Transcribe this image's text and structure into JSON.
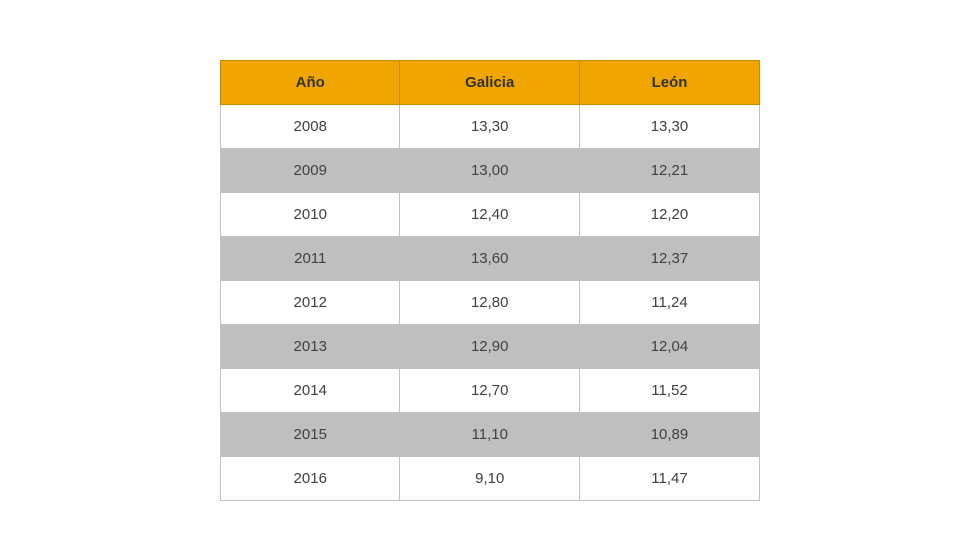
{
  "table": {
    "columns": [
      "Año",
      "Galicia",
      "León"
    ],
    "rows": [
      [
        "2008",
        "13,30",
        "13,30"
      ],
      [
        "2009",
        "13,00",
        "12,21"
      ],
      [
        "2010",
        "12,40",
        "12,20"
      ],
      [
        "2011",
        "13,60",
        "12,37"
      ],
      [
        "2012",
        "12,80",
        "11,24"
      ],
      [
        "2013",
        "12,90",
        "12,04"
      ],
      [
        "2014",
        "12,70",
        "11,52"
      ],
      [
        "2015",
        "11,10",
        "10,89"
      ],
      [
        "2016",
        "9,10",
        "11,47"
      ]
    ],
    "header_bg": "#f0a500",
    "header_text_color": "#333333",
    "header_fontsize": 15,
    "header_border_color": "#c98b00",
    "row_bg_odd": "#ffffff",
    "row_bg_even": "#bfbfbf",
    "cell_text_color": "#414141",
    "cell_fontsize": 15,
    "cell_border_color": "#bfbfbf",
    "col_widths": [
      "33.3%",
      "33.3%",
      "33.4%"
    ]
  }
}
